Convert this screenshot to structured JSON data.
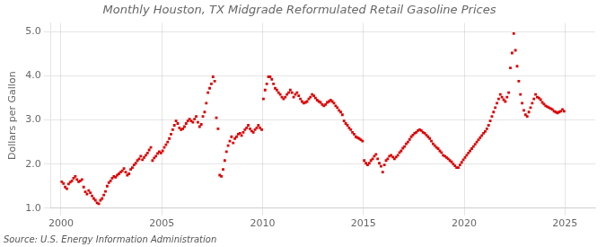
{
  "chart_data": {
    "type": "scatter",
    "title": "Monthly Houston, TX Midgrade Reformulated Retail Gasoline Prices",
    "ylabel": "Dollars per Gallon",
    "annotations": [
      "Source: U.S. Energy Information Administration"
    ],
    "xlim": [
      1999.5,
      2026.5
    ],
    "ylim": [
      1.0,
      5.2
    ],
    "xticks": [
      2000,
      2005,
      2010,
      2015,
      2020,
      2025
    ],
    "yticks": [
      {
        "value": 1.0,
        "label": "1.0"
      },
      {
        "value": 2.0,
        "label": "2.0"
      },
      {
        "value": 3.0,
        "label": "3.0"
      },
      {
        "value": 4.0,
        "label": "4.0"
      },
      {
        "value": 5.0,
        "label": "5.0"
      }
    ],
    "grid": true,
    "color": "#dd0000",
    "marker": "square",
    "x": [
      2000.0417,
      2000.125,
      2000.2083,
      2000.2917,
      2000.375,
      2000.4583,
      2000.5417,
      2000.625,
      2000.7083,
      2000.7917,
      2000.875,
      2000.9583,
      2001.0417,
      2001.125,
      2001.2083,
      2001.2917,
      2001.375,
      2001.4583,
      2001.5417,
      2001.625,
      2001.7083,
      2001.7917,
      2001.875,
      2001.9583,
      2002.0417,
      2002.125,
      2002.2083,
      2002.2917,
      2002.375,
      2002.4583,
      2002.5417,
      2002.625,
      2002.7083,
      2002.7917,
      2002.875,
      2002.9583,
      2003.0417,
      2003.125,
      2003.2083,
      2003.2917,
      2003.375,
      2003.4583,
      2003.5417,
      2003.625,
      2003.7083,
      2003.7917,
      2003.875,
      2003.9583,
      2004.0417,
      2004.125,
      2004.2083,
      2004.2917,
      2004.375,
      2004.4583,
      2004.5417,
      2004.625,
      2004.7083,
      2004.7917,
      2004.875,
      2004.9583,
      2005.0417,
      2005.125,
      2005.2083,
      2005.2917,
      2005.375,
      2005.4583,
      2005.5417,
      2005.625,
      2005.7083,
      2005.7917,
      2005.875,
      2005.9583,
      2006.0417,
      2006.125,
      2006.2083,
      2006.2917,
      2006.375,
      2006.4583,
      2006.5417,
      2006.625,
      2006.7083,
      2006.7917,
      2006.875,
      2006.9583,
      2007.0417,
      2007.125,
      2007.2083,
      2007.2917,
      2007.375,
      2007.4583,
      2007.5417,
      2007.625,
      2007.7083,
      2007.7917,
      2007.875,
      2007.9583,
      2008.0417,
      2008.125,
      2008.2083,
      2008.2917,
      2008.375,
      2008.4583,
      2008.5417,
      2008.625,
      2008.7083,
      2008.7917,
      2008.875,
      2008.9583,
      2009.0417,
      2009.125,
      2009.2083,
      2009.2917,
      2009.375,
      2009.4583,
      2009.5417,
      2009.625,
      2009.7083,
      2009.7917,
      2009.875,
      2009.9583,
      2010.0417,
      2010.125,
      2010.2083,
      2010.2917,
      2010.375,
      2010.4583,
      2010.5417,
      2010.625,
      2010.7083,
      2010.7917,
      2010.875,
      2010.9583,
      2011.0417,
      2011.125,
      2011.2083,
      2011.2917,
      2011.375,
      2011.4583,
      2011.5417,
      2011.625,
      2011.7083,
      2011.7917,
      2011.875,
      2011.9583,
      2012.0417,
      2012.125,
      2012.2083,
      2012.2917,
      2012.375,
      2012.4583,
      2012.5417,
      2012.625,
      2012.7083,
      2012.7917,
      2012.875,
      2012.9583,
      2013.0417,
      2013.125,
      2013.2083,
      2013.2917,
      2013.375,
      2013.4583,
      2013.5417,
      2013.625,
      2013.7083,
      2013.7917,
      2013.875,
      2013.9583,
      2014.0417,
      2014.125,
      2014.2083,
      2014.2917,
      2014.375,
      2014.4583,
      2014.5417,
      2014.625,
      2014.7083,
      2014.7917,
      2014.875,
      2014.9583,
      2015.0417,
      2015.125,
      2015.2083,
      2015.2917,
      2015.375,
      2015.4583,
      2015.5417,
      2015.625,
      2015.7083,
      2015.7917,
      2015.875,
      2015.9583,
      2016.0417,
      2016.125,
      2016.2083,
      2016.2917,
      2016.375,
      2016.4583,
      2016.5417,
      2016.625,
      2016.7083,
      2016.7917,
      2016.875,
      2016.9583,
      2017.0417,
      2017.125,
      2017.2083,
      2017.2917,
      2017.375,
      2017.4583,
      2017.5417,
      2017.625,
      2017.7083,
      2017.7917,
      2017.875,
      2017.9583,
      2018.0417,
      2018.125,
      2018.2083,
      2018.2917,
      2018.375,
      2018.4583,
      2018.5417,
      2018.625,
      2018.7083,
      2018.7917,
      2018.875,
      2018.9583,
      2019.0417,
      2019.125,
      2019.2083,
      2019.2917,
      2019.375,
      2019.4583,
      2019.5417,
      2019.625,
      2019.7083,
      2019.7917,
      2019.875,
      2019.9583,
      2020.0417,
      2020.125,
      2020.2083,
      2020.2917,
      2020.375,
      2020.4583,
      2020.5417,
      2020.625,
      2020.7083,
      2020.7917,
      2020.875,
      2020.9583,
      2021.0417,
      2021.125,
      2021.2083,
      2021.2917,
      2021.375,
      2021.4583,
      2021.5417,
      2021.625,
      2021.7083,
      2021.7917,
      2021.875,
      2021.9583,
      2022.0417,
      2022.125,
      2022.2083,
      2022.2917,
      2022.375,
      2022.4583,
      2022.5417,
      2022.625,
      2022.7083,
      2022.7917,
      2022.875,
      2022.9583,
      2023.0417,
      2023.125,
      2023.2083,
      2023.2917,
      2023.375,
      2023.4583,
      2023.5417,
      2023.625,
      2023.7083,
      2023.7917,
      2023.875,
      2023.9583,
      2024.0417,
      2024.125,
      2024.2083,
      2024.2917,
      2024.375,
      2024.4583,
      2024.5417,
      2024.625,
      2024.7083,
      2024.7917,
      2024.875,
      2024.9583
    ],
    "values": [
      1.6,
      1.56,
      1.48,
      1.44,
      1.55,
      1.59,
      1.62,
      1.68,
      1.72,
      1.65,
      1.6,
      1.62,
      1.65,
      1.48,
      1.37,
      1.32,
      1.4,
      1.35,
      1.28,
      1.22,
      1.18,
      1.12,
      1.1,
      1.18,
      1.22,
      1.3,
      1.38,
      1.5,
      1.58,
      1.62,
      1.68,
      1.72,
      1.7,
      1.75,
      1.78,
      1.82,
      1.85,
      1.9,
      1.82,
      1.75,
      1.78,
      1.88,
      1.92,
      1.98,
      2.02,
      2.08,
      2.12,
      2.18,
      2.1,
      2.15,
      2.2,
      2.25,
      2.32,
      2.38,
      2.08,
      2.14,
      2.18,
      2.24,
      2.28,
      2.25,
      2.3,
      2.38,
      2.44,
      2.5,
      2.58,
      2.68,
      2.78,
      2.88,
      2.98,
      2.92,
      2.82,
      2.78,
      2.8,
      2.85,
      2.92,
      2.98,
      3.02,
      2.98,
      2.95,
      3.02,
      3.08,
      2.95,
      2.85,
      2.9,
      3.08,
      3.18,
      3.38,
      3.62,
      3.72,
      3.82,
      3.98,
      3.88,
      3.05,
      2.8,
      1.75,
      1.72,
      1.88,
      2.08,
      2.28,
      2.42,
      2.52,
      2.62,
      2.48,
      2.58,
      2.62,
      2.68,
      2.7,
      2.65,
      2.72,
      2.78,
      2.82,
      2.88,
      2.8,
      2.75,
      2.72,
      2.78,
      2.82,
      2.88,
      2.82,
      2.78,
      3.48,
      3.68,
      3.82,
      3.98,
      3.98,
      3.92,
      3.82,
      3.72,
      3.68,
      3.62,
      3.58,
      3.52,
      3.48,
      3.52,
      3.58,
      3.62,
      3.68,
      3.62,
      3.52,
      3.58,
      3.62,
      3.55,
      3.48,
      3.42,
      3.38,
      3.4,
      3.42,
      3.48,
      3.52,
      3.58,
      3.55,
      3.5,
      3.45,
      3.42,
      3.4,
      3.35,
      3.32,
      3.35,
      3.4,
      3.42,
      3.45,
      3.42,
      3.38,
      3.32,
      3.28,
      3.22,
      3.18,
      3.12,
      2.98,
      2.92,
      2.88,
      2.82,
      2.78,
      2.72,
      2.68,
      2.62,
      2.6,
      2.58,
      2.55,
      2.52,
      2.08,
      2.02,
      1.98,
      2.02,
      2.08,
      2.12,
      2.18,
      2.22,
      2.12,
      2.02,
      1.95,
      1.82,
      1.98,
      2.08,
      2.12,
      2.18,
      2.2,
      2.16,
      2.12,
      2.16,
      2.2,
      2.26,
      2.3,
      2.36,
      2.4,
      2.46,
      2.5,
      2.56,
      2.62,
      2.66,
      2.7,
      2.72,
      2.76,
      2.78,
      2.76,
      2.72,
      2.7,
      2.66,
      2.62,
      2.58,
      2.52,
      2.46,
      2.42,
      2.38,
      2.35,
      2.3,
      2.26,
      2.2,
      2.18,
      2.15,
      2.12,
      2.08,
      2.05,
      2.0,
      1.96,
      1.92,
      1.92,
      1.98,
      2.04,
      2.1,
      2.15,
      2.2,
      2.25,
      2.3,
      2.35,
      2.4,
      2.45,
      2.5,
      2.55,
      2.6,
      2.65,
      2.7,
      2.74,
      2.8,
      2.88,
      2.98,
      3.08,
      3.18,
      3.28,
      3.38,
      3.48,
      3.58,
      3.52,
      3.46,
      3.42,
      3.52,
      3.62,
      4.18,
      4.52,
      4.96,
      4.58,
      4.22,
      3.88,
      3.58,
      3.38,
      3.22,
      3.12,
      3.08,
      3.18,
      3.28,
      3.38,
      3.48,
      3.58,
      3.52,
      3.5,
      3.46,
      3.4,
      3.36,
      3.32,
      3.3,
      3.28,
      3.26,
      3.24,
      3.2,
      3.18,
      3.16,
      3.18,
      3.2,
      3.24,
      3.2
    ]
  }
}
